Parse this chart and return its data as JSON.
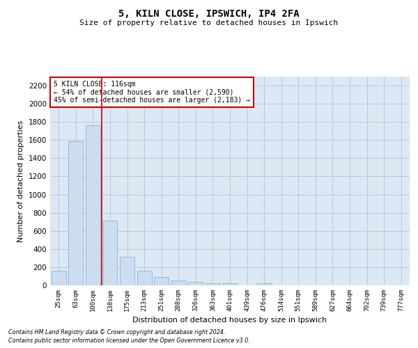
{
  "title": "5, KILN CLOSE, IPSWICH, IP4 2FA",
  "subtitle": "Size of property relative to detached houses in Ipswich",
  "xlabel": "Distribution of detached houses by size in Ipswich",
  "ylabel": "Number of detached properties",
  "categories": [
    "25sqm",
    "63sqm",
    "100sqm",
    "138sqm",
    "175sqm",
    "213sqm",
    "251sqm",
    "288sqm",
    "326sqm",
    "363sqm",
    "401sqm",
    "439sqm",
    "476sqm",
    "514sqm",
    "551sqm",
    "589sqm",
    "627sqm",
    "664sqm",
    "702sqm",
    "739sqm",
    "777sqm"
  ],
  "values": [
    160,
    1590,
    1760,
    710,
    315,
    160,
    90,
    55,
    35,
    25,
    20,
    0,
    20,
    0,
    0,
    0,
    0,
    0,
    0,
    0,
    0
  ],
  "bar_color": "#ccddf0",
  "bar_edgecolor": "#8ab4d8",
  "grid_color": "#b8c8dc",
  "background_color": "#dce8f4",
  "vline_color": "#cc0000",
  "vline_x_index": 2,
  "annotation_text": "5 KILN CLOSE: 116sqm\n← 54% of detached houses are smaller (2,590)\n45% of semi-detached houses are larger (2,183) →",
  "annotation_box_color": "#ffffff",
  "annotation_border_color": "#cc0000",
  "ylim": [
    0,
    2300
  ],
  "yticks": [
    0,
    200,
    400,
    600,
    800,
    1000,
    1200,
    1400,
    1600,
    1800,
    2000,
    2200
  ],
  "footer_line1": "Contains HM Land Registry data © Crown copyright and database right 2024.",
  "footer_line2": "Contains public sector information licensed under the Open Government Licence v3.0."
}
